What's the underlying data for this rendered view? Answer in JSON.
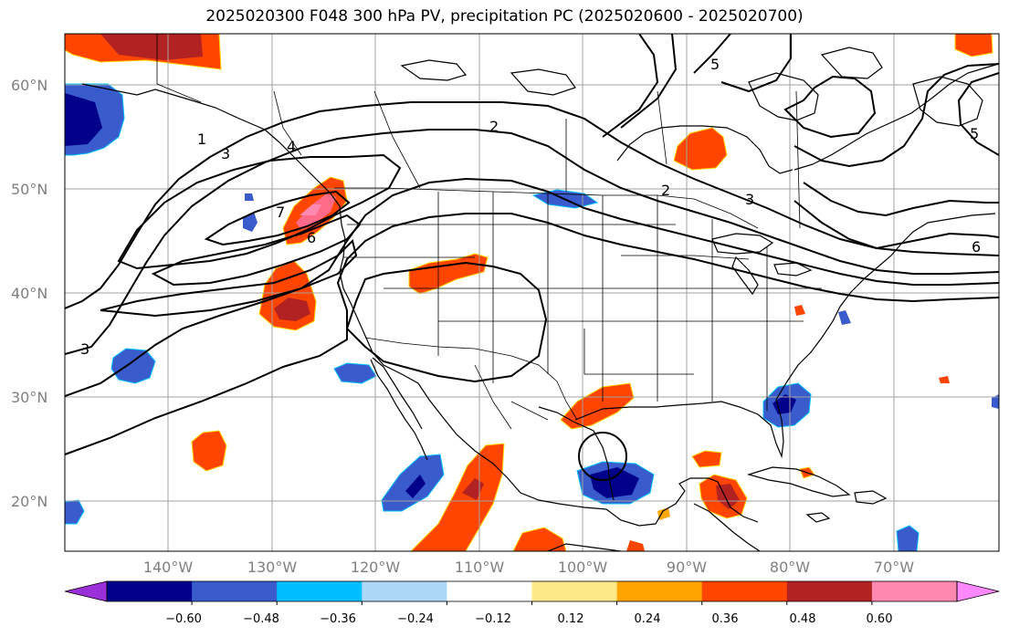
{
  "title": "2025020300 F048 300 hPa PV, precipitation PC (2025020600 - 2025020700)",
  "map": {
    "lat_labels": [
      "60°N",
      "50°N",
      "40°N",
      "30°N",
      "20°N"
    ],
    "lon_labels": [
      "140°W",
      "130°W",
      "120°W",
      "110°W",
      "100°W",
      "90°W",
      "80°W",
      "70°W"
    ],
    "grid": true
  },
  "pv_contour_labels": [
    "1",
    "2",
    "3",
    "4",
    "5",
    "6",
    "7"
  ],
  "colorbar": {
    "ticks": [
      "−0.60",
      "−0.48",
      "−0.36",
      "−0.24",
      "−0.12",
      "0.12",
      "0.24",
      "0.36",
      "0.48",
      "0.60"
    ],
    "colors": [
      "#9b30d9",
      "#00008b",
      "#3a5bcc",
      "#00bfff",
      "#add8f7",
      "#ffffff",
      "#ffea8a",
      "#ffa500",
      "#ff4500",
      "#b22222",
      "#ff88b0",
      "#ff88ff"
    ],
    "extend": "both"
  }
}
